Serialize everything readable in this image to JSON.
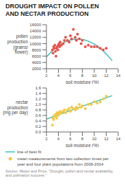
{
  "chart_data": [
    {
      "type": "scatter",
      "title": "DROUGHT IMPACT ON POLLEN\nAND NECTAR PRODUCTION",
      "xlabel": "soil moisture (%)",
      "ylabel": "pollen\nproduction\n(grains/\nflower)",
      "xlim": [
        2,
        14
      ],
      "xticks": [
        2,
        4,
        6,
        8,
        10,
        12,
        14
      ],
      "ylim": [
        2000,
        16000
      ],
      "yticks": [
        2000,
        4000,
        6000,
        8000,
        10000,
        12000,
        14000,
        16000
      ],
      "grid": false,
      "series": [
        {
          "type": "scatter",
          "color": "#e8524a",
          "marker": "circle",
          "x": [
            3.0,
            3.1,
            3.2,
            3.3,
            3.4,
            3.5,
            3.6,
            3.7,
            3.8,
            3.9,
            4.0,
            4.1,
            4.2,
            4.3,
            4.5,
            4.8,
            5.0,
            5.2,
            5.5,
            5.8,
            6.0,
            6.2,
            6.5,
            6.8,
            7.0,
            7.2,
            7.5,
            7.8,
            8.0,
            8.5,
            9.0,
            9.5,
            10.0,
            10.5,
            11.0,
            11.5,
            12.0
          ],
          "values": [
            8000,
            7000,
            9000,
            8500,
            9500,
            7500,
            6000,
            8500,
            9000,
            8000,
            9500,
            10000,
            9000,
            10500,
            9500,
            10000,
            11000,
            12000,
            11000,
            10500,
            12500,
            11500,
            14500,
            12000,
            11000,
            13000,
            11500,
            10000,
            11000,
            9000,
            9500,
            9000,
            9000,
            9000,
            8500,
            8000,
            8500
          ]
        },
        {
          "type": "line",
          "color": "#3bbfbf",
          "line_style": "solid",
          "x": [
            2,
            3,
            4,
            5,
            6,
            7,
            8,
            9,
            10,
            11,
            12,
            13
          ],
          "values": [
            5766,
            7726,
            9272,
            10403,
            11120,
            11423,
            11311,
            10784,
            9843,
            8487,
            6717,
            4532
          ]
        }
      ]
    },
    {
      "type": "scatter",
      "xlabel": "soil moisture (%)",
      "ylabel": "nectar\nproduction\n(mg per day)",
      "xlim": [
        2,
        14
      ],
      "xticks": [
        2,
        4,
        6,
        8,
        10,
        12,
        14
      ],
      "ylim": [
        0.0,
        1.6
      ],
      "yticks": [
        {
          "value": 0.0,
          "label": "0.0"
        },
        0.2,
        0.4,
        0.6,
        0.8,
        {
          "value": 1.0,
          "label": "1.0"
        },
        1.2,
        1.4,
        1.6
      ],
      "grid": false,
      "legend": "bottom",
      "series": [
        {
          "name": "line of best fit",
          "type": "line",
          "color": "#3bbfbf",
          "line_style": "solid",
          "x": [
            2,
            13
          ],
          "values": [
            0.469,
            1.322
          ]
        },
        {
          "name": "mean measurements from two collection times per\nyear and four plant populations from 2009-2014",
          "type": "scatter",
          "color": "#f5c842",
          "marker": "circle",
          "x": [
            3.0,
            3.1,
            3.2,
            3.3,
            3.5,
            3.6,
            3.7,
            3.8,
            3.9,
            4.0,
            4.2,
            4.3,
            4.5,
            4.8,
            5.0,
            5.2,
            5.5,
            5.8,
            6.0,
            6.2,
            6.5,
            6.8,
            7.0,
            7.2,
            7.5,
            7.8,
            8.0,
            8.5,
            9.0,
            9.5,
            10.0,
            10.5,
            11.0,
            11.5,
            12.0
          ],
          "values": [
            0.25,
            0.5,
            0.45,
            0.6,
            0.55,
            0.65,
            0.5,
            0.7,
            0.6,
            0.7,
            0.65,
            0.75,
            0.7,
            0.75,
            0.8,
            0.7,
            0.8,
            0.85,
            0.75,
            0.9,
            0.85,
            0.8,
            0.9,
            0.85,
            1.0,
            0.9,
            0.95,
            0.85,
            1.0,
            1.0,
            1.1,
            1.05,
            1.1,
            1.2,
            1.3
          ]
        }
      ],
      "annotations": [
        "Source: Meijer and Price, \"Drought, pollen and nectar availability, and pollination success.\""
      ]
    }
  ]
}
